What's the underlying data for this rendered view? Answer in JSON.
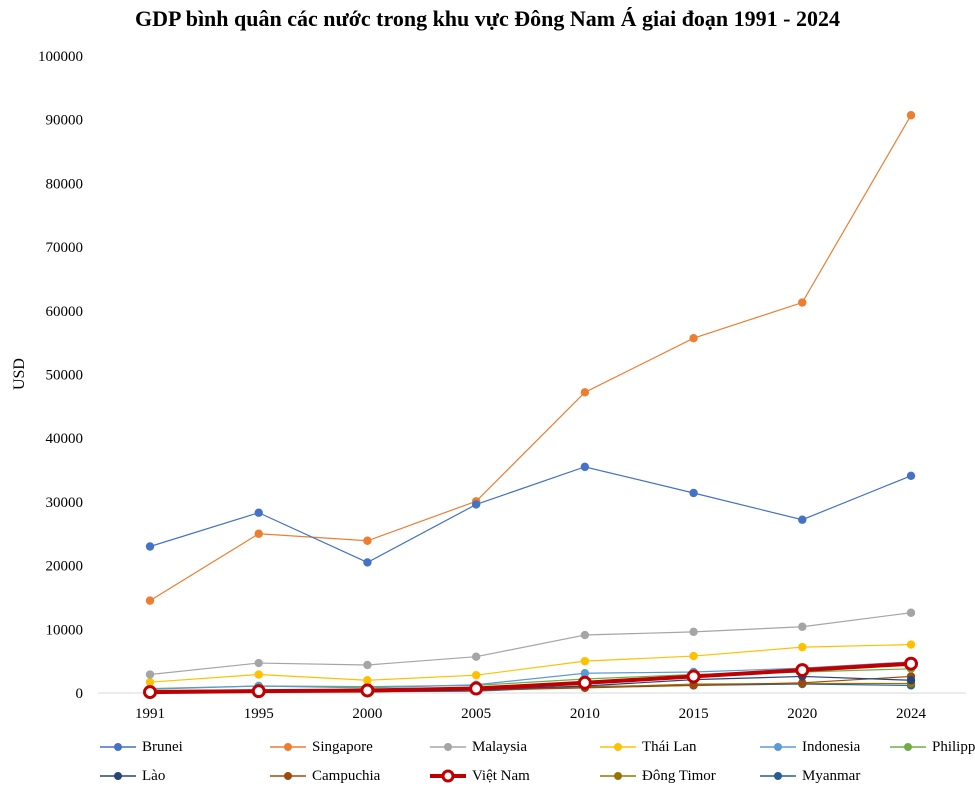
{
  "chart_data": {
    "type": "line",
    "title": "GDP bình quân các nước trong khu vực Đông Nam Á giai đoạn 1991 - 2024",
    "xlabel": "",
    "ylabel": "USD",
    "ylim": [
      0,
      100000
    ],
    "yticks": [
      "0",
      "10000",
      "20000",
      "30000",
      "40000",
      "50000",
      "60000",
      "70000",
      "80000",
      "90000",
      "100000"
    ],
    "categories": [
      "1991",
      "1995",
      "2000",
      "2005",
      "2010",
      "2015",
      "2020",
      "2024"
    ],
    "grid": false,
    "legend_position": "bottom",
    "series": [
      {
        "name": "Brunei",
        "color": "#4472C4",
        "values": [
          23000,
          28300,
          20500,
          29600,
          35500,
          31400,
          27200,
          34100
        ]
      },
      {
        "name": "Singapore",
        "color": "#ED7D31",
        "values": [
          14500,
          25000,
          23900,
          30100,
          47200,
          55700,
          61300,
          90700
        ]
      },
      {
        "name": "Malaysia",
        "color": "#A5A5A5",
        "values": [
          2900,
          4700,
          4400,
          5700,
          9100,
          9600,
          10400,
          12600
        ]
      },
      {
        "name": "Thái Lan",
        "color": "#FFC000",
        "values": [
          1700,
          2900,
          2000,
          2800,
          5000,
          5800,
          7200,
          7600
        ]
      },
      {
        "name": "Indonesia",
        "color": "#5B9BD5",
        "values": [
          600,
          1100,
          800,
          1300,
          3100,
          3300,
          3900,
          4900
        ]
      },
      {
        "name": "Philippines",
        "color": "#70AD47",
        "values": [
          700,
          1100,
          1000,
          1200,
          2200,
          2900,
          3300,
          3800
        ]
      },
      {
        "name": "Lào",
        "color": "#264478",
        "values": [
          250,
          400,
          300,
          500,
          1100,
          2100,
          2600,
          2000
        ]
      },
      {
        "name": "Campuchia",
        "color": "#9E480E",
        "values": [
          250,
          330,
          300,
          450,
          800,
          1200,
          1600,
          2600
        ]
      },
      {
        "name": "Việt Nam",
        "color": "#C00000",
        "values": [
          140,
          290,
          400,
          700,
          1600,
          2600,
          3600,
          4600
        ]
      },
      {
        "name": "Đông Timor",
        "color": "#997300",
        "values": [
          400,
          450,
          450,
          500,
          900,
          1400,
          1500,
          1500
        ]
      },
      {
        "name": "Myanmar",
        "color": "#255E91",
        "values": [
          200,
          250,
          200,
          300,
          1000,
          1200,
          1400,
          1200
        ]
      }
    ]
  }
}
